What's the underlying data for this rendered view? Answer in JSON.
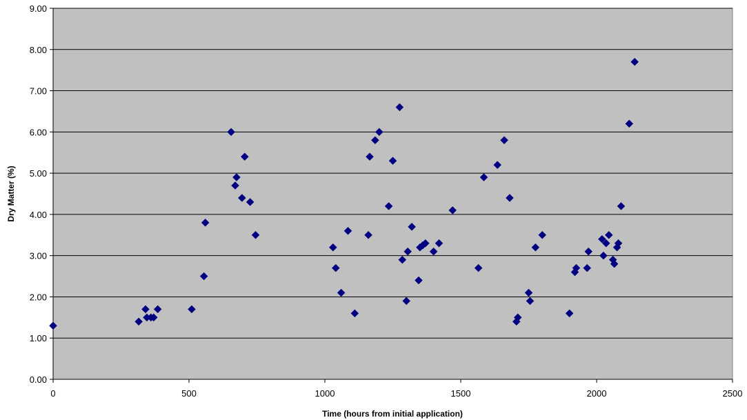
{
  "chart_data": {
    "type": "scatter",
    "title": "",
    "xlabel": "Time (hours from initial application)",
    "ylabel": "Dry Matter (%)",
    "xlim": [
      0,
      2500
    ],
    "ylim": [
      0,
      9
    ],
    "x_ticks": [
      0,
      500,
      1000,
      1500,
      2000,
      2500
    ],
    "x_tick_labels": [
      "0",
      "500",
      "1000",
      "1500",
      "2000",
      "2500"
    ],
    "y_ticks": [
      0,
      1,
      2,
      3,
      4,
      5,
      6,
      7,
      8,
      9
    ],
    "y_tick_labels": [
      "0.00",
      "1.00",
      "2.00",
      "3.00",
      "4.00",
      "5.00",
      "6.00",
      "7.00",
      "8.00",
      "9.00"
    ],
    "grid": "horizontal",
    "legend": "none",
    "colors": {
      "plot_bg": "#c0c0c0",
      "marker": "#000080",
      "grid": "#000000"
    },
    "marker": "diamond",
    "points": [
      {
        "x": 0,
        "y": 1.3
      },
      {
        "x": 315,
        "y": 1.4
      },
      {
        "x": 340,
        "y": 1.7
      },
      {
        "x": 345,
        "y": 1.5
      },
      {
        "x": 360,
        "y": 1.5
      },
      {
        "x": 370,
        "y": 1.5
      },
      {
        "x": 385,
        "y": 1.7
      },
      {
        "x": 510,
        "y": 1.7
      },
      {
        "x": 555,
        "y": 2.5
      },
      {
        "x": 560,
        "y": 3.8
      },
      {
        "x": 655,
        "y": 6.0
      },
      {
        "x": 670,
        "y": 4.7
      },
      {
        "x": 675,
        "y": 4.9
      },
      {
        "x": 695,
        "y": 4.4
      },
      {
        "x": 705,
        "y": 5.4
      },
      {
        "x": 725,
        "y": 4.3
      },
      {
        "x": 745,
        "y": 3.5
      },
      {
        "x": 1030,
        "y": 3.2
      },
      {
        "x": 1040,
        "y": 2.7
      },
      {
        "x": 1060,
        "y": 2.1
      },
      {
        "x": 1085,
        "y": 3.6
      },
      {
        "x": 1110,
        "y": 1.6
      },
      {
        "x": 1160,
        "y": 3.5
      },
      {
        "x": 1165,
        "y": 5.4
      },
      {
        "x": 1185,
        "y": 5.8
      },
      {
        "x": 1200,
        "y": 6.0
      },
      {
        "x": 1235,
        "y": 4.2
      },
      {
        "x": 1250,
        "y": 5.3
      },
      {
        "x": 1275,
        "y": 6.6
      },
      {
        "x": 1285,
        "y": 2.9
      },
      {
        "x": 1300,
        "y": 1.9
      },
      {
        "x": 1305,
        "y": 3.1
      },
      {
        "x": 1320,
        "y": 3.7
      },
      {
        "x": 1345,
        "y": 2.4
      },
      {
        "x": 1350,
        "y": 3.2
      },
      {
        "x": 1360,
        "y": 3.25
      },
      {
        "x": 1370,
        "y": 3.3
      },
      {
        "x": 1400,
        "y": 3.1
      },
      {
        "x": 1420,
        "y": 3.3
      },
      {
        "x": 1470,
        "y": 4.1
      },
      {
        "x": 1565,
        "y": 2.7
      },
      {
        "x": 1585,
        "y": 4.9
      },
      {
        "x": 1635,
        "y": 5.2
      },
      {
        "x": 1660,
        "y": 5.8
      },
      {
        "x": 1680,
        "y": 4.4
      },
      {
        "x": 1705,
        "y": 1.4
      },
      {
        "x": 1710,
        "y": 1.5
      },
      {
        "x": 1750,
        "y": 2.1
      },
      {
        "x": 1755,
        "y": 1.9
      },
      {
        "x": 1775,
        "y": 3.2
      },
      {
        "x": 1800,
        "y": 3.5
      },
      {
        "x": 1900,
        "y": 1.6
      },
      {
        "x": 1920,
        "y": 2.6
      },
      {
        "x": 1925,
        "y": 2.7
      },
      {
        "x": 1965,
        "y": 2.7
      },
      {
        "x": 1970,
        "y": 3.1
      },
      {
        "x": 2020,
        "y": 3.4
      },
      {
        "x": 2025,
        "y": 3.0
      },
      {
        "x": 2035,
        "y": 3.3
      },
      {
        "x": 2045,
        "y": 3.5
      },
      {
        "x": 2060,
        "y": 2.9
      },
      {
        "x": 2065,
        "y": 2.8
      },
      {
        "x": 2075,
        "y": 3.2
      },
      {
        "x": 2080,
        "y": 3.3
      },
      {
        "x": 2090,
        "y": 4.2
      },
      {
        "x": 2120,
        "y": 6.2
      },
      {
        "x": 2140,
        "y": 7.7
      }
    ]
  }
}
